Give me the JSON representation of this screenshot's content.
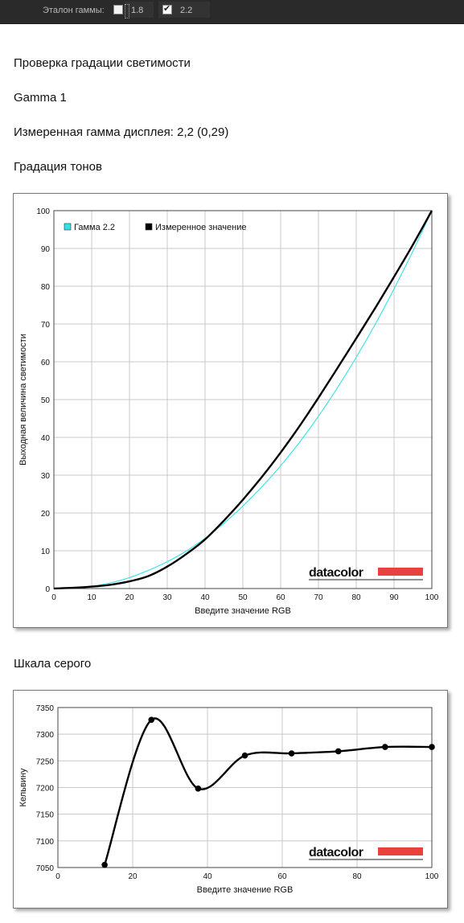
{
  "toolbar": {
    "label": "Эталон гаммы:",
    "option1": {
      "value": "1.8",
      "checked": false
    },
    "option2": {
      "value": "2.2",
      "checked": true
    }
  },
  "page": {
    "title": "Проверка градации светимости",
    "subtitle": "Gamma 1",
    "measured": "Измеренная гамма дисплея: 2,2 (0,29)",
    "section1": "Градация тонов",
    "section2": "Шкала серого"
  },
  "chart_data": [
    {
      "type": "line",
      "logo": "datacolor",
      "xlabel": "Введите значение RGB",
      "ylabel": "Выходная величина светимости",
      "xlim": [
        0,
        100
      ],
      "ylim": [
        0,
        100
      ],
      "xticks": [
        0,
        10,
        20,
        30,
        40,
        50,
        60,
        70,
        80,
        90,
        100
      ],
      "yticks": [
        0,
        10,
        20,
        30,
        40,
        50,
        60,
        70,
        80,
        90,
        100
      ],
      "grid": true,
      "legend_position": "top-left",
      "series": [
        {
          "name": "Гамма 2.2",
          "color": "#33e0e8",
          "x": [
            0,
            5,
            10,
            15,
            20,
            25,
            30,
            35,
            40,
            45,
            50,
            55,
            60,
            65,
            70,
            75,
            80,
            85,
            90,
            95,
            100
          ],
          "y": [
            0,
            0.1,
            0.6,
            1.5,
            2.9,
            4.8,
            7.1,
            9.9,
            13.3,
            17.3,
            21.8,
            26.9,
            32.5,
            38.7,
            45.6,
            53.1,
            61.2,
            69.9,
            79.3,
            89.3,
            100
          ]
        },
        {
          "name": "Измеренное значение",
          "color": "#000000",
          "x": [
            0,
            5,
            10,
            15,
            20,
            25,
            30,
            35,
            40,
            45,
            50,
            55,
            60,
            65,
            70,
            75,
            80,
            85,
            90,
            95,
            100
          ],
          "y": [
            0,
            0.2,
            0.5,
            1.0,
            1.9,
            3.3,
            5.8,
            9.1,
            13.0,
            18.0,
            23.5,
            29.5,
            36.0,
            43.0,
            50.5,
            58.3,
            66.2,
            74.2,
            82.5,
            91.0,
            100
          ]
        }
      ]
    },
    {
      "type": "line",
      "logo": "datacolor",
      "xlabel": "Введите значение RGB",
      "ylabel": "Кельвину",
      "xlim": [
        0,
        100
      ],
      "ylim": [
        7050,
        7350
      ],
      "xticks": [
        0,
        20,
        40,
        60,
        80,
        100
      ],
      "yticks": [
        7050,
        7100,
        7150,
        7200,
        7250,
        7300,
        7350
      ],
      "grid": true,
      "series": [
        {
          "color": "#000000",
          "x": [
            12.5,
            25,
            37.5,
            50,
            62.5,
            75,
            87.5,
            100
          ],
          "y": [
            7055,
            7327,
            7198,
            7260,
            7264,
            7268,
            7276,
            7276
          ]
        }
      ]
    }
  ]
}
